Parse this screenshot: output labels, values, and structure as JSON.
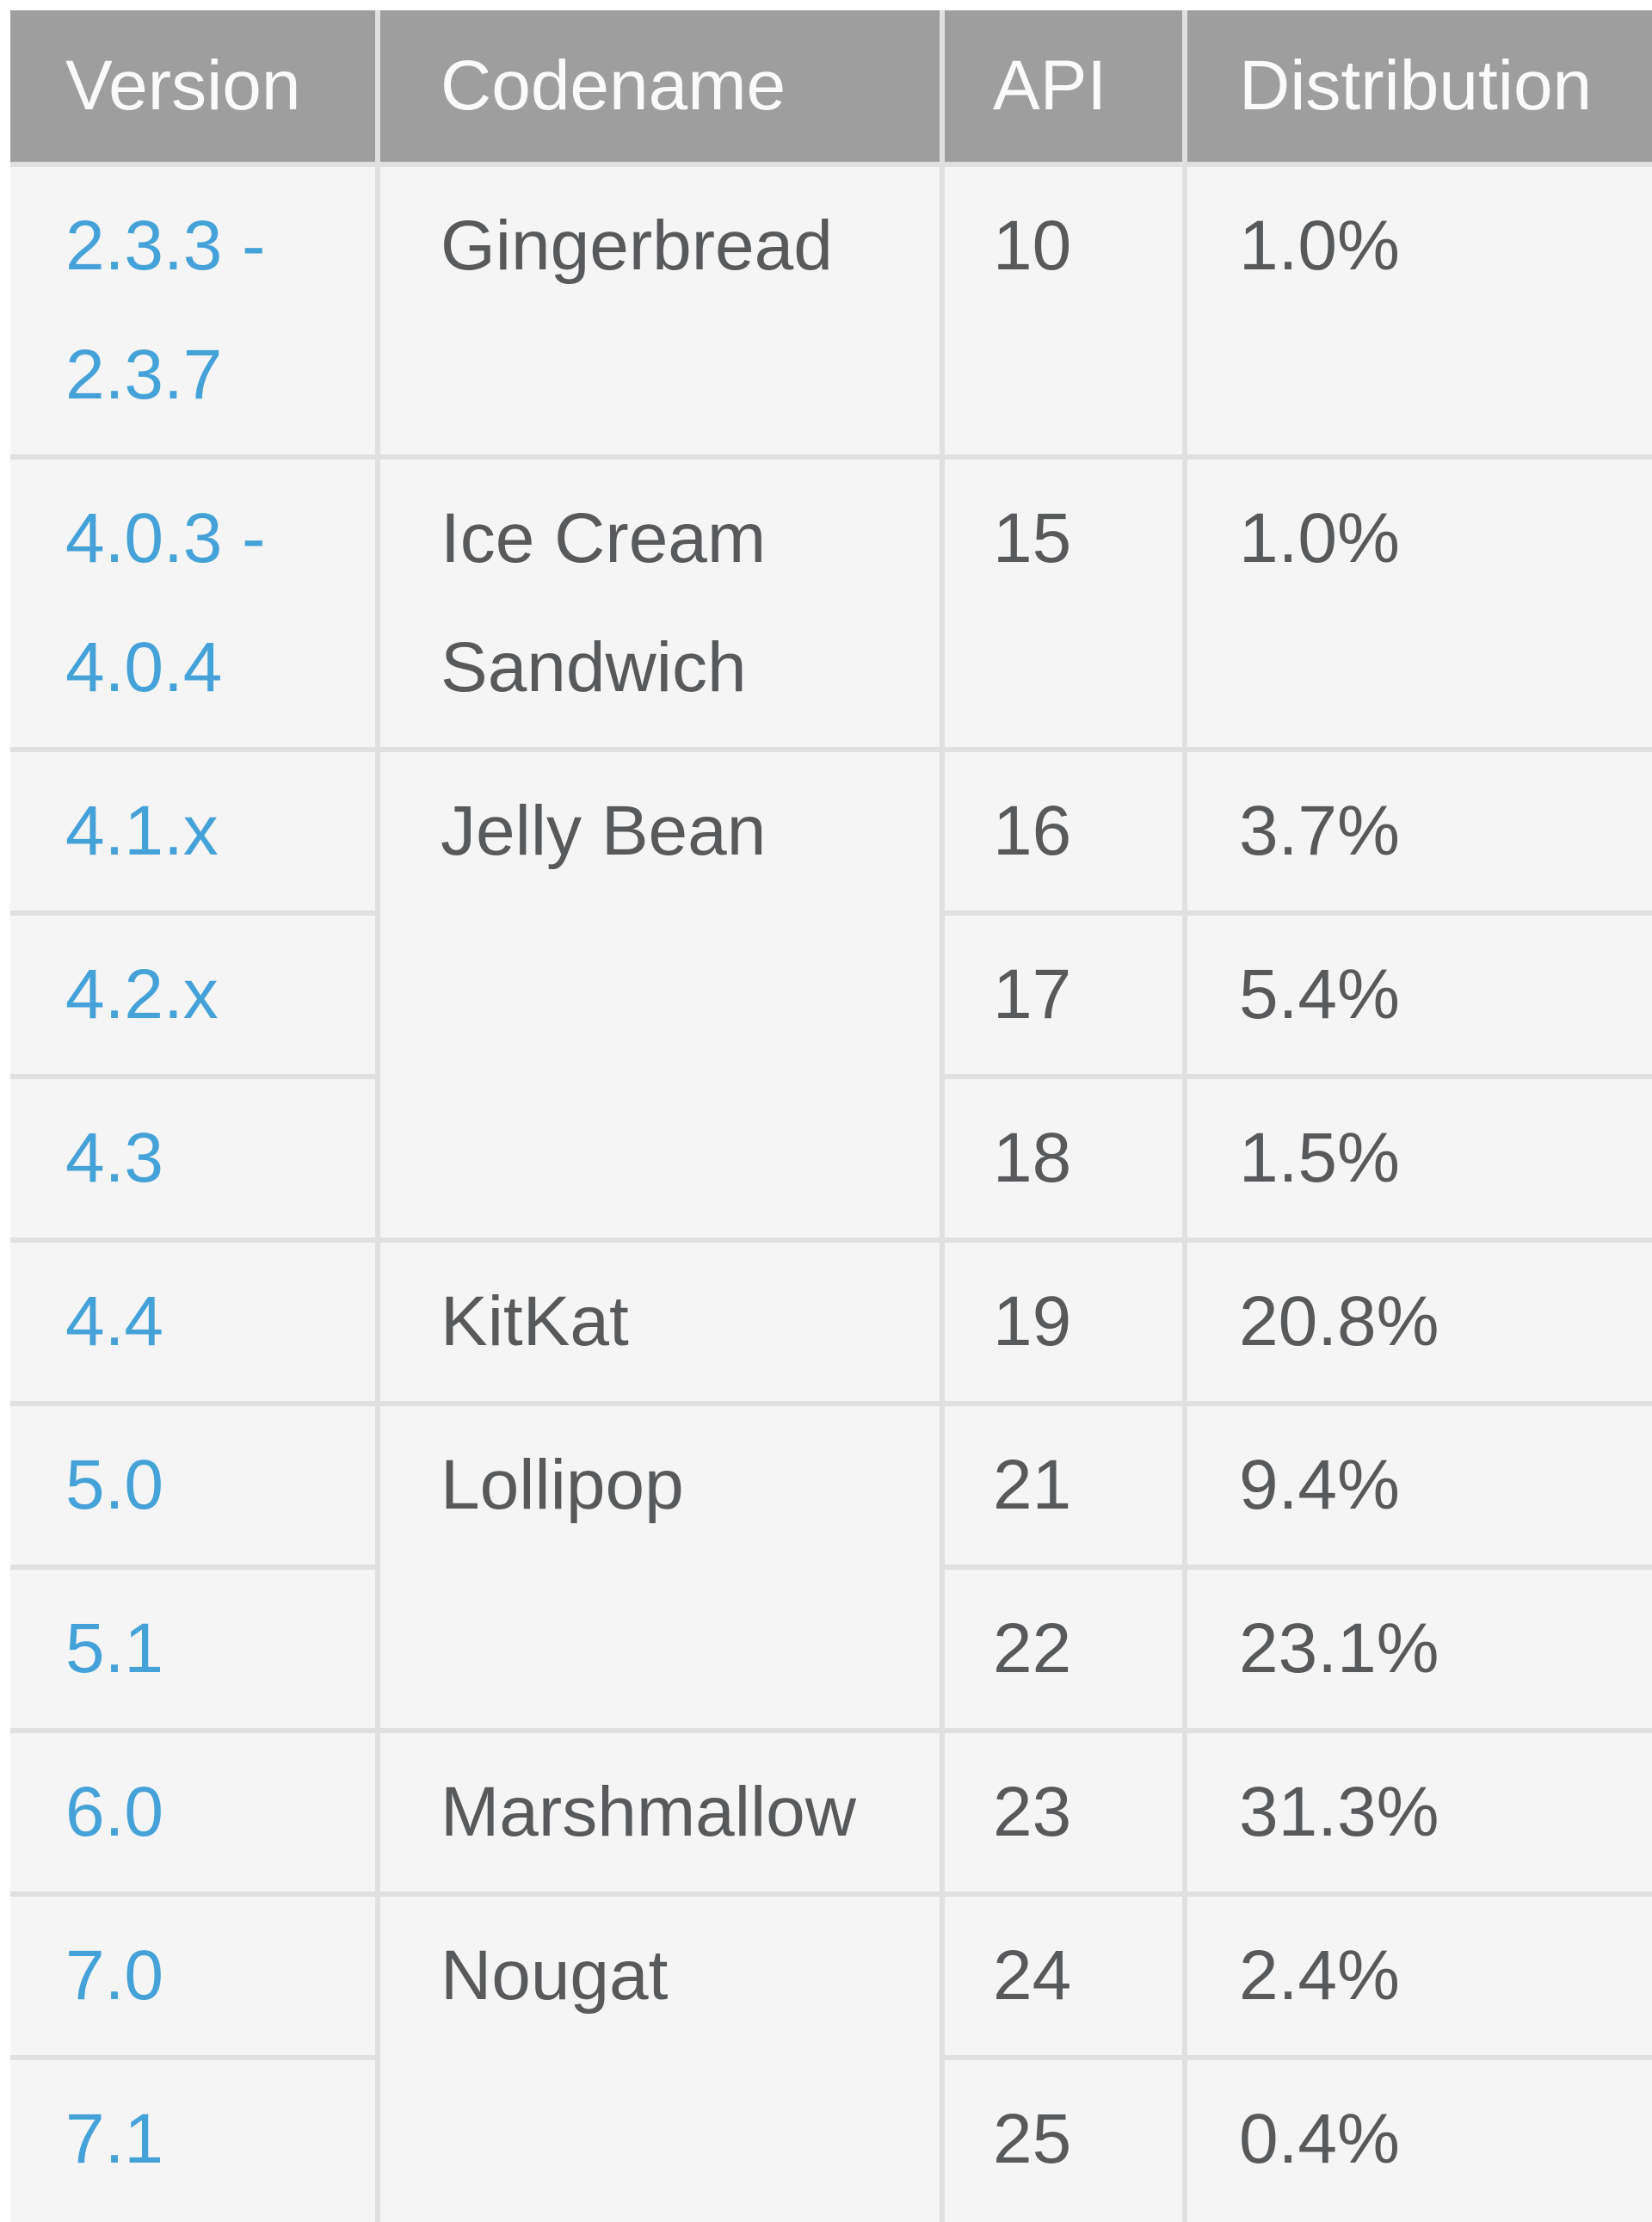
{
  "table": {
    "headers": {
      "version": "Version",
      "codename": "Codename",
      "api": "API",
      "distribution": "Distribution"
    },
    "rows": [
      {
        "version": "2.3.3 - 2.3.7",
        "codename": "Gingerbread",
        "codename_rowspan": 1,
        "api": "10",
        "distribution": "1.0%"
      },
      {
        "version": "4.0.3 - 4.0.4",
        "codename": "Ice Cream Sandwich",
        "codename_rowspan": 1,
        "api": "15",
        "distribution": "1.0%"
      },
      {
        "version": "4.1.x",
        "codename": "Jelly Bean",
        "codename_rowspan": 3,
        "api": "16",
        "distribution": "3.7%"
      },
      {
        "version": "4.2.x",
        "api": "17",
        "distribution": "5.4%"
      },
      {
        "version": "4.3",
        "api": "18",
        "distribution": "1.5%"
      },
      {
        "version": "4.4",
        "codename": "KitKat",
        "codename_rowspan": 1,
        "api": "19",
        "distribution": "20.8%"
      },
      {
        "version": "5.0",
        "codename": "Lollipop",
        "codename_rowspan": 2,
        "api": "21",
        "distribution": "9.4%"
      },
      {
        "version": "5.1",
        "api": "22",
        "distribution": "23.1%"
      },
      {
        "version": "6.0",
        "codename": "Marshmallow",
        "codename_rowspan": 1,
        "api": "23",
        "distribution": "31.3%"
      },
      {
        "version": "7.0",
        "codename": "Nougat",
        "codename_rowspan": 2,
        "api": "24",
        "distribution": "2.4%"
      },
      {
        "version": "7.1",
        "api": "25",
        "distribution": "0.4%"
      }
    ]
  },
  "colors": {
    "page_bg": "#ffffff",
    "header_bg": "#9e9e9e",
    "header_text": "#fafafa",
    "row_bg": "#f5f5f5",
    "link_blue": "#45a2d9",
    "body_text": "#58595b",
    "grid_line": "#e0e0e0"
  }
}
